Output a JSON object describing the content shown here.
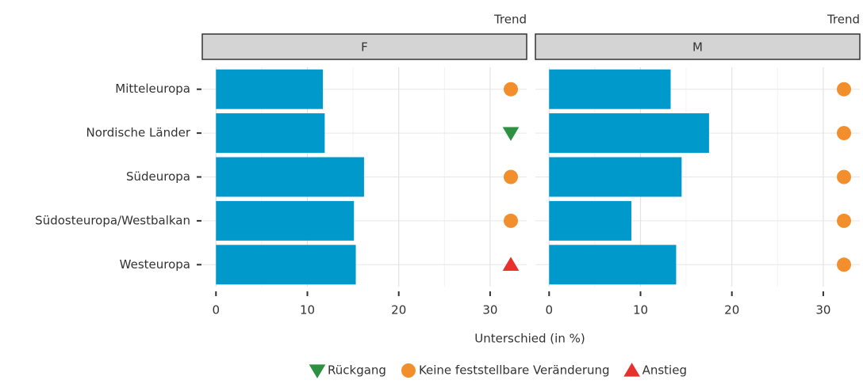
{
  "chart_data": {
    "type": "faceted-bar",
    "categories": [
      "Mitteleuropa",
      "Nordische Länder",
      "Südeuropa",
      "Südosteuropa/Westbalkan",
      "Westeuropa"
    ],
    "color": "#0099cc",
    "xlabel": "Unterschied (in %)",
    "trend_header": "Trend",
    "xlim": [
      -1.5,
      34
    ],
    "xticks": [
      0,
      10,
      20,
      30
    ],
    "minor_xticks": [
      5,
      15,
      25
    ],
    "grid": true,
    "facets": [
      {
        "label": "F",
        "values": [
          11.7,
          11.9,
          16.2,
          15.1,
          15.3
        ],
        "trend": [
          1,
          0,
          1,
          1,
          2
        ]
      },
      {
        "label": "M",
        "values": [
          13.3,
          17.5,
          14.5,
          9.0,
          13.9
        ],
        "trend": [
          1,
          1,
          1,
          1,
          1
        ]
      }
    ],
    "legend": [
      {
        "name": "Rückgang",
        "color": "#2e9142",
        "shape": "triangle-down"
      },
      {
        "name": "Keine feststellbare Veränderung",
        "color": "#f28e2b",
        "shape": "circle"
      },
      {
        "name": "Anstieg",
        "color": "#e8302f",
        "shape": "triangle-up"
      }
    ]
  }
}
